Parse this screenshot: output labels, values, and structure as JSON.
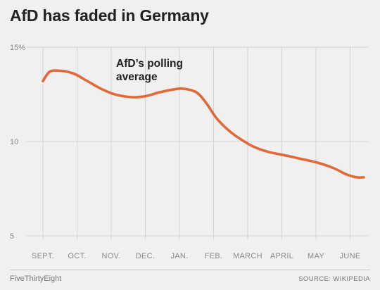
{
  "colors": {
    "background": "#f0f0f0",
    "line": "#e16937",
    "grid": "#d4d4d4",
    "text": "#222222",
    "muted": "#888888"
  },
  "chart_data": {
    "type": "line",
    "title": "AfD has faded in Germany",
    "xlabel": "",
    "ylabel": "",
    "categories": [
      "SEPT.",
      "OCT.",
      "NOV.",
      "DEC.",
      "JAN.",
      "FEB.",
      "MARCH",
      "APRIL",
      "MAY",
      "JUNE"
    ],
    "y_ticks": [
      {
        "value": 15,
        "label": "15%"
      },
      {
        "value": 10,
        "label": "10"
      },
      {
        "value": 5,
        "label": "5"
      }
    ],
    "ylim": [
      5,
      15
    ],
    "grid": true,
    "annotation": [
      "AfD’s polling",
      "average"
    ],
    "series": [
      {
        "values": [
          [
            0.0,
            13.2
          ],
          [
            0.2,
            13.7
          ],
          [
            0.5,
            13.75
          ],
          [
            0.9,
            13.6
          ],
          [
            1.3,
            13.2
          ],
          [
            1.7,
            12.8
          ],
          [
            2.1,
            12.5
          ],
          [
            2.6,
            12.35
          ],
          [
            3.0,
            12.4
          ],
          [
            3.4,
            12.6
          ],
          [
            3.8,
            12.75
          ],
          [
            4.1,
            12.8
          ],
          [
            4.5,
            12.6
          ],
          [
            4.8,
            12.0
          ],
          [
            5.1,
            11.2
          ],
          [
            5.5,
            10.5
          ],
          [
            5.9,
            10.0
          ],
          [
            6.2,
            9.7
          ],
          [
            6.6,
            9.45
          ],
          [
            7.0,
            9.3
          ],
          [
            7.5,
            9.1
          ],
          [
            8.0,
            8.9
          ],
          [
            8.5,
            8.6
          ],
          [
            8.9,
            8.25
          ],
          [
            9.2,
            8.1
          ],
          [
            9.4,
            8.1
          ]
        ]
      }
    ]
  },
  "footer": {
    "brand": "FiveThirtyEight",
    "source": "SOURCE: WIKIPEDIA"
  }
}
